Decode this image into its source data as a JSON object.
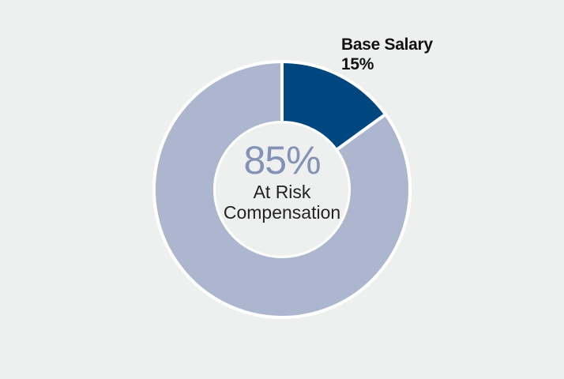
{
  "chart_data": {
    "type": "pie",
    "style": "donut",
    "slices": [
      {
        "label": "Base Salary",
        "value": 15,
        "value_label": "15%",
        "color": "#00467f"
      },
      {
        "label": "At Risk Compensation",
        "value": 85,
        "value_label": "85%",
        "color": "#adb6cf"
      }
    ],
    "center": {
      "value_label": "85%",
      "text_line1": "At Risk",
      "text_line2": "Compensation"
    },
    "separator_color": "#ffffff",
    "hole_color": "#eef0f0",
    "value_text_color": "#8493b5"
  }
}
